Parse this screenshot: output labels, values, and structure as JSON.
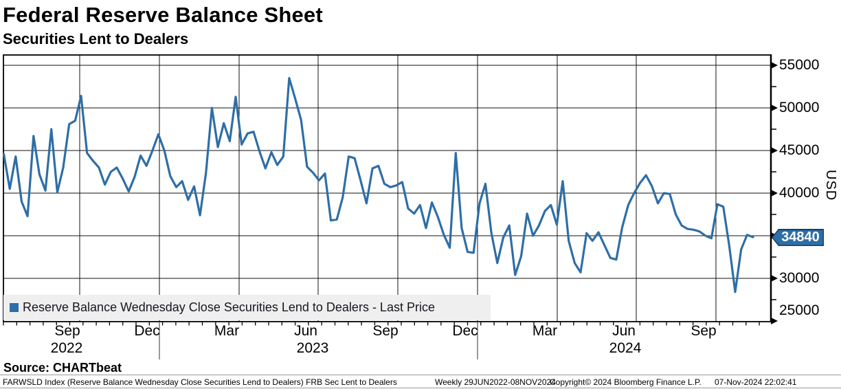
{
  "header": {
    "title": "Federal Reserve Balance Sheet",
    "subtitle": "Securities Lent to Dealers"
  },
  "legend": {
    "label": "Reserve Balance Wednesday Close Securities Lend to Dealers - Last Price"
  },
  "badge": {
    "value": "34840"
  },
  "y_axis": {
    "unit": "USD",
    "labeled_ticks": [
      "55000",
      "50000",
      "45000",
      "40000",
      "30000",
      "25000"
    ]
  },
  "x_axis": {
    "month_labels": [
      "Sep",
      "Dec",
      "Mar",
      "Jun",
      "Sep",
      "Dec",
      "Mar",
      "Jun",
      "Sep"
    ],
    "year_labels": [
      "2022",
      "2023",
      "2024"
    ]
  },
  "footer": {
    "source": "Source: CHARTbeat",
    "index_note": "FARWSLD Index (Reserve Balance Wednesday Close Securities Lend to Dealers) FRB Sec Lent to Dealers",
    "range_note": "Weekly 29JUN2022-08NOV2024",
    "copyright_note": "Copyright© 2024 Bloomberg Finance L.P.",
    "timestamp": "07-Nov-2024 22:02:41"
  },
  "colors": {
    "line": "#2e6ea6",
    "badge_bg": "#2e6ea6",
    "badge_border": "#16405f",
    "legend_bg": "#efefef",
    "grid": "#111111"
  },
  "chart_data": {
    "type": "line",
    "title": "Federal Reserve Balance Sheet - Securities Lent to Dealers",
    "xlabel": "",
    "ylabel": "USD",
    "ylim": [
      25000,
      56300
    ],
    "grid": true,
    "legend_position": "bottom-left",
    "x_range": "29JUN2022-08NOV2024",
    "frequency": "Weekly",
    "y_major_ticks": [
      25000,
      30000,
      35000,
      40000,
      45000,
      50000,
      55000
    ],
    "y_minor_ticks": [
      27500,
      32500,
      37500,
      42500,
      47500,
      52500
    ],
    "x_gridline_months": [
      "Oct 2022",
      "Jan 2023",
      "Apr 2023",
      "Jul 2023",
      "Oct 2023",
      "Jan 2024",
      "Apr 2024",
      "Jul 2024",
      "Oct 2024"
    ],
    "series": [
      {
        "name": "Reserve Balance Wednesday Close Securities Lend to Dealers - Last Price",
        "start": "29JUN2022",
        "end": "08NOV2024",
        "last_price": 34840,
        "values": [
          44600,
          40500,
          44300,
          39000,
          37300,
          46700,
          42200,
          40300,
          47500,
          40100,
          43000,
          48100,
          48500,
          51400,
          44700,
          43800,
          43000,
          41000,
          42500,
          43000,
          41700,
          40200,
          41900,
          44400,
          43200,
          45000,
          46900,
          45000,
          42000,
          40700,
          41400,
          39200,
          40800,
          37400,
          42400,
          50000,
          45400,
          48200,
          46100,
          51300,
          45700,
          47000,
          47200,
          44900,
          42900,
          44800,
          43300,
          44300,
          53500,
          51100,
          48600,
          43100,
          42400,
          41500,
          42300,
          36800,
          36900,
          39500,
          44300,
          44100,
          41500,
          38800,
          42900,
          43200,
          41100,
          40700,
          40900,
          41300,
          38200,
          37600,
          38600,
          35900,
          38900,
          37200,
          35100,
          33600,
          44700,
          35900,
          33100,
          33000,
          38800,
          41100,
          35300,
          31800,
          34800,
          36200,
          30400,
          32600,
          37600,
          35000,
          36200,
          37900,
          38600,
          36300,
          41400,
          34400,
          31800,
          30700,
          35300,
          34400,
          35400,
          33900,
          32400,
          32200,
          36000,
          38600,
          40000,
          41200,
          42100,
          40800,
          38800,
          40000,
          39900,
          37500,
          36200,
          35800,
          35700,
          35500,
          35000,
          34700,
          38700,
          38400,
          33800,
          28400,
          33400,
          35100,
          34840
        ]
      }
    ]
  }
}
